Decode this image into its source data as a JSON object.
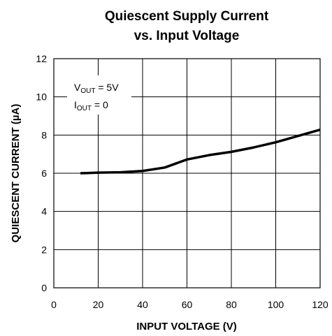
{
  "chart_data": {
    "type": "line",
    "title": [
      "Quiescent Supply Current",
      "vs. Input Voltage"
    ],
    "xlabel": "INPUT VOLTAGE (V)",
    "ylabel": "QUIESCENT CURRENT (µA)",
    "annotations": [
      {
        "main": "V",
        "sub": "OUT",
        "rest": " = 5V"
      },
      {
        "main": "I",
        "sub": "OUT",
        "rest": " = 0"
      }
    ],
    "x": [
      12,
      20,
      30,
      40,
      50,
      60,
      70,
      80,
      90,
      100,
      110,
      120
    ],
    "series": [
      {
        "name": null,
        "color": "#000000",
        "values": [
          6.0,
          6.03,
          6.05,
          6.12,
          6.3,
          6.72,
          6.95,
          7.12,
          7.35,
          7.62,
          7.95,
          8.28
        ]
      }
    ],
    "xlim": [
      0,
      120
    ],
    "xticks": [
      0,
      20,
      40,
      60,
      80,
      100,
      120
    ],
    "ylim": [
      0,
      12
    ],
    "yticks": [
      0,
      2,
      4,
      6,
      8,
      10,
      12
    ],
    "grid": true
  }
}
